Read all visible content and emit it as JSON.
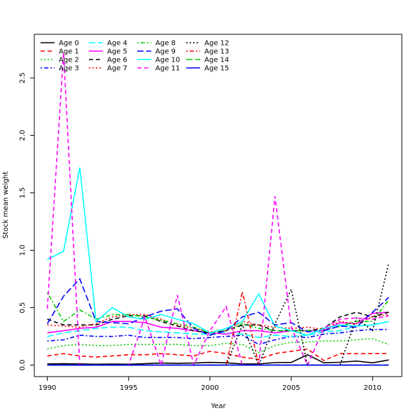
{
  "chart_data": {
    "type": "line",
    "title": "",
    "xlabel": "Year",
    "ylabel": "Stock mean weight",
    "xlim": [
      1989.2,
      2011.8
    ],
    "ylim": [
      -0.1,
      2.88
    ],
    "xticks": [
      1990,
      1995,
      2000,
      2005,
      2010
    ],
    "yticks": [
      0.0,
      0.5,
      1.0,
      1.5,
      2.0,
      2.5
    ],
    "ytick_labels": [
      "0.0",
      "0.5",
      "1.0",
      "1.5",
      "2.0",
      "2.5"
    ],
    "legend_position": "top-left",
    "x": [
      1990,
      1991,
      1992,
      1993,
      1994,
      1995,
      1996,
      1997,
      1998,
      1999,
      2000,
      2001,
      2002,
      2003,
      2004,
      2005,
      2006,
      2007,
      2008,
      2009,
      2010,
      2011
    ],
    "series": [
      {
        "name": "Age 0",
        "color": "#000000",
        "dash": "solid",
        "values": [
          0.01,
          0.012,
          0.01,
          0.008,
          0.009,
          0.008,
          0.012,
          0.018,
          0.015,
          0.018,
          0.024,
          0.02,
          0.01,
          0.01,
          0.022,
          0.024,
          0.09,
          0.02,
          0.025,
          0.035,
          0.02,
          0.045
        ]
      },
      {
        "name": "Age 1",
        "color": "#ff0000",
        "dash": "dashed",
        "values": [
          0.08,
          0.1,
          0.08,
          0.07,
          0.08,
          0.09,
          0.09,
          0.1,
          0.09,
          0.08,
          0.12,
          0.1,
          0.07,
          0.05,
          0.1,
          0.12,
          0.14,
          0.04,
          0.1,
          0.1,
          0.1,
          0.1
        ]
      },
      {
        "name": "Age 2",
        "color": "#00cd00",
        "dash": "dotted",
        "values": [
          0.14,
          0.17,
          0.18,
          0.17,
          0.17,
          0.18,
          0.18,
          0.18,
          0.18,
          0.17,
          0.17,
          0.19,
          0.18,
          0.11,
          0.17,
          0.2,
          0.2,
          0.21,
          0.21,
          0.22,
          0.23,
          0.18
        ]
      },
      {
        "name": "Age 3",
        "color": "#0000ff",
        "dash": "dotdash",
        "values": [
          0.21,
          0.22,
          0.26,
          0.25,
          0.25,
          0.26,
          0.24,
          0.24,
          0.24,
          0.23,
          0.24,
          0.25,
          0.26,
          0.18,
          0.22,
          0.25,
          0.24,
          0.27,
          0.28,
          0.3,
          0.31,
          0.31
        ]
      },
      {
        "name": "Age 4",
        "color": "#00ffff",
        "dash": "longdash",
        "values": [
          0.25,
          0.28,
          0.3,
          0.32,
          0.33,
          0.33,
          0.3,
          0.29,
          0.28,
          0.27,
          0.27,
          0.28,
          0.27,
          0.24,
          0.26,
          0.25,
          0.26,
          0.29,
          0.3,
          0.34,
          0.35,
          0.38
        ]
      },
      {
        "name": "Age 5",
        "color": "#ff00ff",
        "dash": "solid",
        "values": [
          0.28,
          0.3,
          0.32,
          0.33,
          0.38,
          0.38,
          0.37,
          0.33,
          0.32,
          0.3,
          0.28,
          0.27,
          0.3,
          0.3,
          0.28,
          0.3,
          0.3,
          0.3,
          0.37,
          0.36,
          0.45,
          0.46
        ]
      },
      {
        "name": "Age 6",
        "color": "#000000",
        "dash": "dashed",
        "values": [
          0.4,
          0.35,
          0.35,
          0.35,
          0.4,
          0.43,
          0.43,
          0.38,
          0.34,
          0.3,
          0.28,
          0.3,
          0.35,
          0.35,
          0.3,
          0.3,
          0.3,
          0.32,
          0.42,
          0.46,
          0.42,
          0.46
        ]
      },
      {
        "name": "Age 7",
        "color": "#ff0000",
        "dash": "dotted",
        "values": [
          0.35,
          0.34,
          0.33,
          0.36,
          0.42,
          0.44,
          0.44,
          0.4,
          0.35,
          0.32,
          0.29,
          0.3,
          0.38,
          0.35,
          0.33,
          0.32,
          0.33,
          0.31,
          0.38,
          0.36,
          0.42,
          0.44
        ]
      },
      {
        "name": "Age 8",
        "color": "#00cd00",
        "dash": "dotdash",
        "values": [
          0.63,
          0.38,
          0.48,
          0.4,
          0.44,
          0.44,
          0.42,
          0.39,
          0.36,
          0.33,
          0.28,
          0.3,
          0.36,
          0.32,
          0.3,
          0.3,
          0.3,
          0.3,
          0.34,
          0.38,
          0.38,
          0.57
        ]
      },
      {
        "name": "Age 9",
        "color": "#0000ff",
        "dash": "longdash",
        "values": [
          0.36,
          0.6,
          0.75,
          0.38,
          0.37,
          0.36,
          0.42,
          0.47,
          0.49,
          0.32,
          0.26,
          0.3,
          0.42,
          0.46,
          0.35,
          0.37,
          0.29,
          0.3,
          0.34,
          0.33,
          0.46,
          0.59
        ]
      },
      {
        "name": "Age 10",
        "color": "#00ffff",
        "dash": "solid",
        "values": [
          0.92,
          0.99,
          1.72,
          0.38,
          0.5,
          0.42,
          0.4,
          0.44,
          0.4,
          0.36,
          0.28,
          0.32,
          0.38,
          0.62,
          0.34,
          0.3,
          0.26,
          0.32,
          0.35,
          0.34,
          0.35,
          0.38
        ]
      },
      {
        "name": "Age 11",
        "color": "#ff00ff",
        "dash": "dashed",
        "values": [
          0.49,
          2.72,
          0.0,
          0.0,
          0.0,
          0.0,
          0.42,
          0.0,
          0.61,
          0.0,
          0.3,
          0.51,
          0.0,
          0.0,
          1.47,
          0.33,
          0.0,
          0.32,
          0.4,
          0.41,
          0.4,
          0.43
        ]
      },
      {
        "name": "Age 12",
        "color": "#000000",
        "dash": "dotted",
        "values": [
          0.0,
          0.0,
          0.0,
          0.0,
          0.0,
          0.0,
          0.0,
          0.0,
          0.0,
          0.0,
          0.0,
          0.0,
          0.35,
          0.0,
          0.36,
          0.66,
          0.0,
          0.0,
          0.0,
          0.41,
          0.3,
          0.89
        ]
      },
      {
        "name": "Age 13",
        "color": "#ff0000",
        "dash": "dotdash",
        "values": [
          0.0,
          0.0,
          0.0,
          0.0,
          0.0,
          0.0,
          0.0,
          0.0,
          0.0,
          0.0,
          0.0,
          0.0,
          0.64,
          0.0,
          0.0,
          0.0,
          0.0,
          0.0,
          0.0,
          0.0,
          0.0,
          0.0
        ]
      },
      {
        "name": "Age 14",
        "color": "#00cd00",
        "dash": "longdash",
        "values": [
          0.0,
          0.0,
          0.0,
          0.0,
          0.0,
          0.0,
          0.0,
          0.0,
          0.0,
          0.0,
          0.0,
          0.0,
          0.0,
          0.0,
          0.0,
          0.0,
          0.0,
          0.0,
          0.0,
          0.0,
          0.0,
          0.0
        ]
      },
      {
        "name": "Age 15",
        "color": "#0000ff",
        "dash": "solid",
        "values": [
          0.0,
          0.0,
          0.0,
          0.0,
          0.0,
          0.0,
          0.0,
          0.0,
          0.0,
          0.0,
          0.0,
          0.0,
          0.0,
          0.0,
          0.0,
          0.0,
          0.0,
          0.0,
          0.0,
          0.0,
          0.0,
          0.0
        ]
      }
    ]
  }
}
